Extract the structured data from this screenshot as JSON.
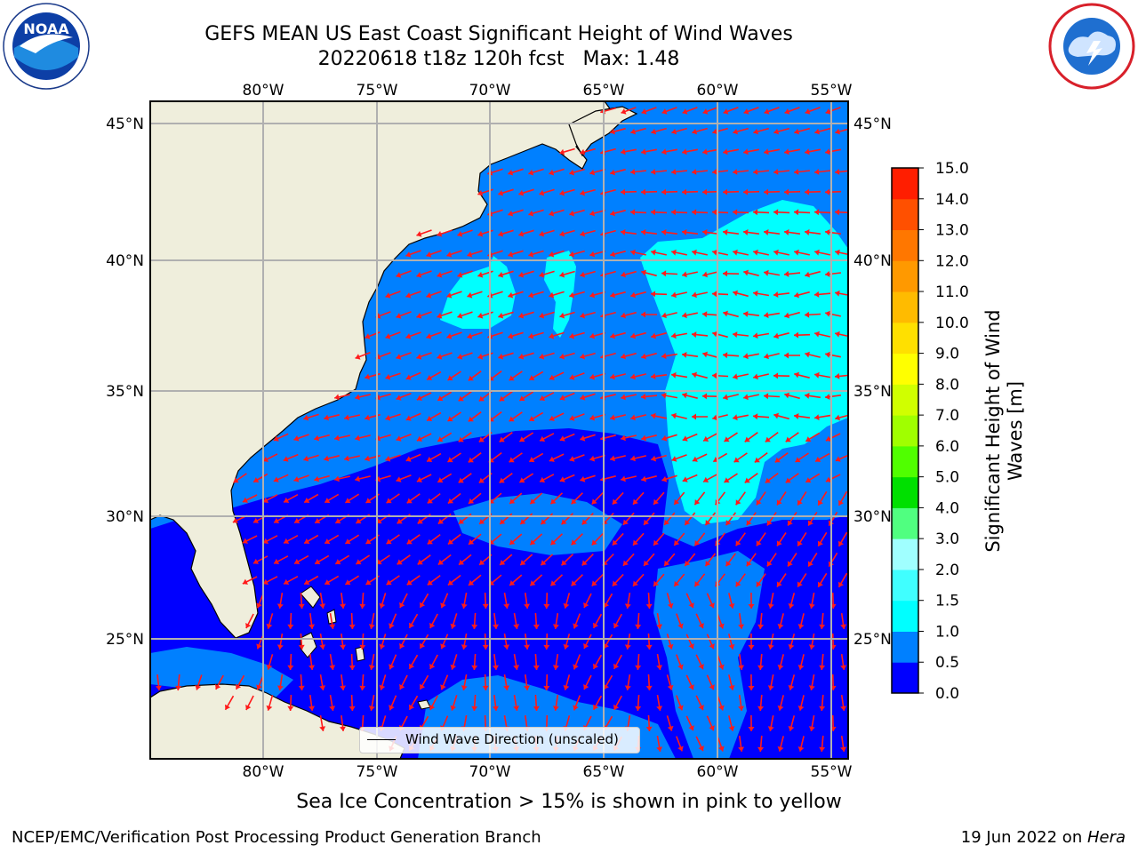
{
  "title": {
    "line1": "GEFS MEAN US East Coast Significant Height of Wind Waves",
    "line2": "20220618 t18z 120h fcst   Max: 1.48"
  },
  "map": {
    "lon_ticks_top": [
      "80°W",
      "75°W",
      "70°W",
      "65°W",
      "60°W",
      "55°W"
    ],
    "lon_ticks_bottom": [
      "80°W",
      "75°W",
      "70°W",
      "65°W",
      "60°W",
      "55°W"
    ],
    "lat_ticks_left": [
      "45°N",
      "40°N",
      "35°N",
      "30°N",
      "25°N"
    ],
    "lat_ticks_right": [
      "45°N",
      "40°N",
      "35°N",
      "30°N",
      "25°N"
    ],
    "legend_label": "Wind Wave Direction (unscaled)",
    "land_color": "#efeedc",
    "arrow_color": "#ff1a1a"
  },
  "colorbar": {
    "label_line1": "Significant Height of Wind",
    "label_line2": "Waves [m]",
    "ticks": [
      "0.0",
      "0.5",
      "1.0",
      "1.5",
      "2.0",
      "3.0",
      "4.0",
      "5.0",
      "6.0",
      "7.0",
      "8.0",
      "9.0",
      "10.0",
      "11.0",
      "12.0",
      "13.0",
      "14.0",
      "15.0"
    ],
    "colors": [
      "#0000ff",
      "#0080ff",
      "#00ffff",
      "#40ffff",
      "#a0ffff",
      "#50ff80",
      "#00e000",
      "#50ff00",
      "#a0ff00",
      "#d0ff00",
      "#ffff00",
      "#ffe000",
      "#ffbb00",
      "#ff9900",
      "#ff7700",
      "#ff5000",
      "#ff1e00"
    ]
  },
  "sea_ice_note": "Sea Ice Concentration > 15% is shown in pink to yellow",
  "footer": {
    "left": "NCEP/EMC/Verification Post Processing Product Generation Branch",
    "right_prefix": "19 Jun 2022 on ",
    "right_italic": "Hera"
  },
  "logos": {
    "left": "NOAA",
    "right": "NATIONAL WEATHER SERVICE"
  }
}
